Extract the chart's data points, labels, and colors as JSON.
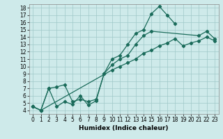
{
  "xlabel": "Humidex (Indice chaleur)",
  "bg_color": "#ceeaea",
  "grid_color": "#a0c8c8",
  "line_color": "#1a6b5a",
  "xlim": [
    -0.5,
    23.5
  ],
  "ylim": [
    3.5,
    18.5
  ],
  "xticks": [
    0,
    1,
    2,
    3,
    4,
    5,
    6,
    7,
    8,
    9,
    10,
    11,
    12,
    13,
    14,
    15,
    16,
    17,
    18,
    19,
    20,
    21,
    22,
    23
  ],
  "yticks": [
    4,
    5,
    6,
    7,
    8,
    9,
    10,
    11,
    12,
    13,
    14,
    15,
    16,
    17,
    18
  ],
  "line1_x": [
    0,
    1,
    2,
    3,
    4,
    5,
    6,
    7,
    8,
    9,
    10,
    11,
    12,
    13,
    14,
    15,
    16,
    17,
    18
  ],
  "line1_y": [
    4.5,
    4.0,
    7.0,
    4.5,
    5.2,
    4.8,
    6.0,
    4.7,
    5.3,
    9.0,
    11.0,
    11.5,
    13.0,
    14.5,
    15.0,
    17.2,
    18.2,
    17.0,
    15.8
  ],
  "line2_x": [
    0,
    1,
    2,
    3,
    4,
    5,
    6,
    7,
    8,
    9,
    10,
    11,
    12,
    13,
    14,
    15,
    21,
    22,
    23
  ],
  "line2_y": [
    4.5,
    4.0,
    7.0,
    7.2,
    7.5,
    5.2,
    5.5,
    5.2,
    5.5,
    9.0,
    10.2,
    11.0,
    11.5,
    13.0,
    14.2,
    14.8,
    14.2,
    14.8,
    13.8
  ],
  "line3_x": [
    0,
    1,
    10,
    11,
    12,
    13,
    14,
    15,
    16,
    17,
    18,
    19,
    20,
    21,
    22,
    23
  ],
  "line3_y": [
    4.5,
    4.0,
    9.5,
    10.0,
    10.5,
    11.0,
    11.8,
    12.2,
    12.8,
    13.2,
    13.8,
    12.8,
    13.2,
    13.5,
    14.0,
    13.5
  ],
  "tick_fontsize": 5.5,
  "xlabel_fontsize": 6.5,
  "marker_size": 2.2,
  "line_width": 0.9
}
